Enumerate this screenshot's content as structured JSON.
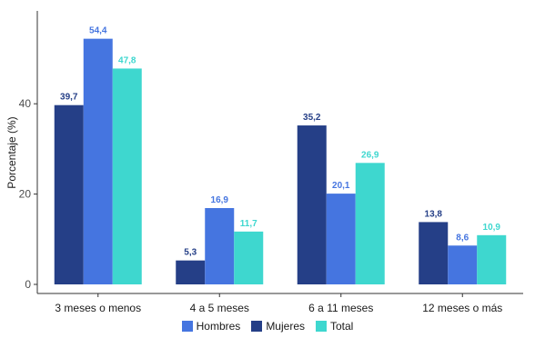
{
  "chart_data": {
    "type": "bar",
    "ylabel": "Porcentaje (%)",
    "xlabel": "",
    "categories": [
      "3 meses o menos",
      "4 a 5 meses",
      "6 a 11 meses",
      "12 meses o más"
    ],
    "series": [
      {
        "name": "Mujeres",
        "color": "#253F87",
        "label_color": "#253F87",
        "values": [
          39.7,
          5.3,
          35.2,
          13.8
        ],
        "labels": [
          "39,7",
          "5,3",
          "35,2",
          "13,8"
        ]
      },
      {
        "name": "Hombres",
        "color": "#4575E0",
        "label_color": "#4575E0",
        "values": [
          54.4,
          16.9,
          20.1,
          8.6
        ],
        "labels": [
          "54,4",
          "16,9",
          "20,1",
          "8,6"
        ]
      },
      {
        "name": "Total",
        "color": "#3ED7CF",
        "label_color": "#3ED7CF",
        "values": [
          47.8,
          11.7,
          26.9,
          10.9
        ],
        "labels": [
          "47,8",
          "11,7",
          "26,9",
          "10,9"
        ]
      }
    ],
    "yticks": [
      0,
      20,
      40
    ],
    "ylim": [
      0,
      57
    ],
    "grid": false,
    "legend_position": "bottom",
    "legend_order": [
      "Hombres",
      "Mujeres",
      "Total"
    ]
  }
}
